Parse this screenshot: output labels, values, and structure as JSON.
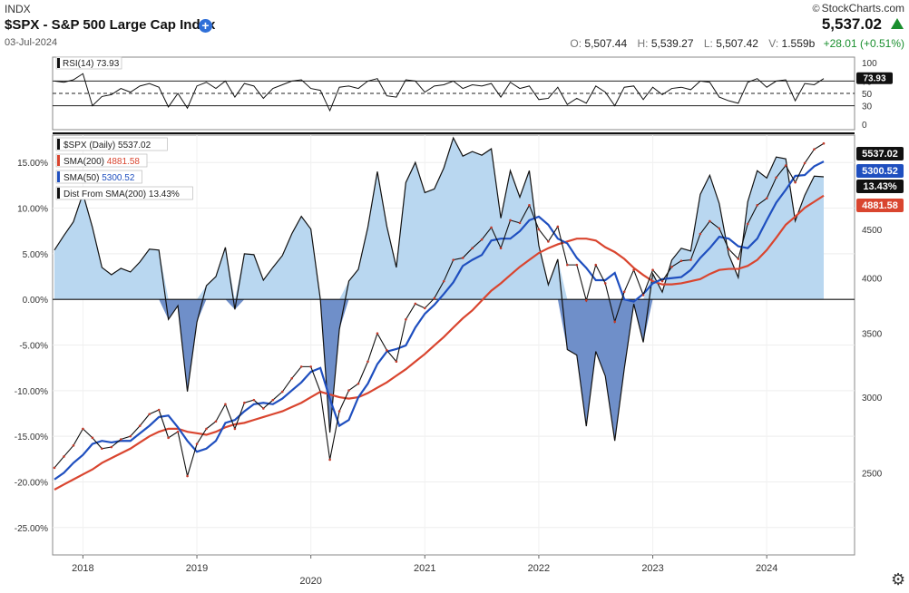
{
  "header": {
    "exchange": "INDX",
    "title": "$SPX - S&P 500 Large Cap Index",
    "date": "03-Jul-2024",
    "brand": "StockCharts.com",
    "price": "5,537.02",
    "open_label": "O:",
    "open": "5,507.44",
    "high_label": "H:",
    "high": "5,539.27",
    "low_label": "L:",
    "low": "5,507.42",
    "volume": "1.559b",
    "change": "+28.01 (+0.51%)"
  },
  "rsi_panel": {
    "legend": "RSI(14)",
    "legend_value": "73.93",
    "badge": "73.93",
    "ticks": [
      "100",
      "70",
      "50",
      "30",
      "0"
    ]
  },
  "main_legend": [
    {
      "label": "$SPX (Daily)",
      "value": "5537.02",
      "color": "#111111"
    },
    {
      "label": "SMA(200)",
      "value": "4881.58",
      "color": "#d9452f"
    },
    {
      "label": "SMA(50)",
      "value": "5300.52",
      "color": "#1f4fbf"
    },
    {
      "label": "Dist From SMA(200)",
      "value": "13.43%",
      "color": "#111111"
    }
  ],
  "badges": [
    {
      "text": "5537.02",
      "bg": "#111111",
      "fg": "#ffffff"
    },
    {
      "text": "5300.52",
      "bg": "#1f4fbf",
      "fg": "#ffffff"
    },
    {
      "text": "13.43%",
      "bg": "#111111",
      "fg": "#ffffff"
    },
    {
      "text": "4881.58",
      "bg": "#d9452f",
      "fg": "#ffffff"
    }
  ],
  "x_ticks": [
    "2018",
    "2019",
    "2020",
    "2021",
    "2022",
    "2023",
    "2024"
  ],
  "chart_data": {
    "type": "line",
    "x": [
      "2017-10",
      "2017-11",
      "2017-12",
      "2018-01",
      "2018-02",
      "2018-03",
      "2018-04",
      "2018-05",
      "2018-06",
      "2018-07",
      "2018-08",
      "2018-09",
      "2018-10",
      "2018-11",
      "2018-12",
      "2019-01",
      "2019-02",
      "2019-03",
      "2019-04",
      "2019-05",
      "2019-06",
      "2019-07",
      "2019-08",
      "2019-09",
      "2019-10",
      "2019-11",
      "2019-12",
      "2020-01",
      "2020-02",
      "2020-03",
      "2020-04",
      "2020-05",
      "2020-06",
      "2020-07",
      "2020-08",
      "2020-09",
      "2020-10",
      "2020-11",
      "2020-12",
      "2021-01",
      "2021-02",
      "2021-03",
      "2021-04",
      "2021-05",
      "2021-06",
      "2021-07",
      "2021-08",
      "2021-09",
      "2021-10",
      "2021-11",
      "2021-12",
      "2022-01",
      "2022-02",
      "2022-03",
      "2022-04",
      "2022-05",
      "2022-06",
      "2022-07",
      "2022-08",
      "2022-09",
      "2022-10",
      "2022-11",
      "2022-12",
      "2023-01",
      "2023-02",
      "2023-03",
      "2023-04",
      "2023-05",
      "2023-06",
      "2023-07",
      "2023-08",
      "2023-09",
      "2023-10",
      "2023-11",
      "2023-12",
      "2024-01",
      "2024-02",
      "2024-03",
      "2024-04",
      "2024-05",
      "2024-06",
      "2024-07"
    ],
    "series": [
      {
        "name": "$SPX (Daily)",
        "axis": "price",
        "values": [
          2530,
          2600,
          2670,
          2780,
          2720,
          2650,
          2660,
          2710,
          2730,
          2800,
          2880,
          2910,
          2720,
          2760,
          2480,
          2680,
          2780,
          2830,
          2950,
          2780,
          2960,
          2980,
          2920,
          2980,
          3040,
          3140,
          3230,
          3230,
          3040,
          2580,
          2900,
          3050,
          3100,
          3270,
          3500,
          3360,
          3270,
          3620,
          3760,
          3720,
          3810,
          3970,
          4180,
          4200,
          4300,
          4390,
          4520,
          4300,
          4600,
          4570,
          4770,
          4500,
          4370,
          4530,
          4130,
          4130,
          3790,
          4130,
          3950,
          3600,
          3870,
          4080,
          3840,
          4080,
          3970,
          4110,
          4170,
          4180,
          4450,
          4590,
          4510,
          4290,
          4190,
          4560,
          4770,
          4850,
          5100,
          5250,
          5040,
          5280,
          5460,
          5537
        ]
      },
      {
        "name": "SMA(200)",
        "axis": "price",
        "values": [
          2400,
          2430,
          2460,
          2490,
          2520,
          2560,
          2590,
          2620,
          2650,
          2690,
          2730,
          2760,
          2780,
          2780,
          2760,
          2750,
          2740,
          2760,
          2790,
          2810,
          2820,
          2840,
          2860,
          2880,
          2900,
          2930,
          2960,
          3000,
          3040,
          3020,
          3000,
          2990,
          3000,
          3030,
          3070,
          3110,
          3160,
          3210,
          3270,
          3330,
          3400,
          3470,
          3550,
          3630,
          3700,
          3790,
          3880,
          3950,
          4030,
          4110,
          4180,
          4250,
          4300,
          4340,
          4370,
          4400,
          4400,
          4380,
          4310,
          4260,
          4190,
          4100,
          4030,
          3970,
          3940,
          3940,
          3950,
          3970,
          3990,
          4040,
          4080,
          4090,
          4090,
          4120,
          4180,
          4280,
          4410,
          4550,
          4640,
          4740,
          4810,
          4881.58
        ]
      },
      {
        "name": "SMA(50)",
        "axis": "price",
        "values": [
          2460,
          2500,
          2560,
          2610,
          2680,
          2700,
          2690,
          2700,
          2700,
          2750,
          2800,
          2860,
          2870,
          2790,
          2700,
          2630,
          2650,
          2700,
          2820,
          2840,
          2900,
          2950,
          2960,
          2950,
          2990,
          3050,
          3110,
          3190,
          3220,
          2990,
          2800,
          2840,
          3000,
          3100,
          3250,
          3350,
          3370,
          3400,
          3550,
          3670,
          3750,
          3850,
          3960,
          4120,
          4180,
          4230,
          4380,
          4400,
          4400,
          4480,
          4600,
          4640,
          4550,
          4400,
          4350,
          4200,
          4100,
          3980,
          3980,
          4050,
          3800,
          3780,
          3850,
          3950,
          3990,
          4000,
          4010,
          4080,
          4200,
          4300,
          4420,
          4400,
          4320,
          4300,
          4400,
          4600,
          4800,
          4950,
          5120,
          5130,
          5240,
          5300.52
        ]
      },
      {
        "name": "Dist From SMA(200)",
        "axis": "percent",
        "values": [
          5.4,
          7.0,
          8.5,
          11.6,
          7.9,
          3.5,
          2.7,
          3.4,
          3.0,
          4.1,
          5.5,
          5.4,
          -2.2,
          -0.7,
          -10.1,
          -2.5,
          1.5,
          2.5,
          5.7,
          -1.1,
          5.0,
          4.9,
          2.1,
          3.5,
          4.8,
          7.2,
          9.1,
          7.7,
          0.0,
          -14.6,
          -3.3,
          2.0,
          3.3,
          7.9,
          14.0,
          8.0,
          3.5,
          12.8,
          15.0,
          11.7,
          12.1,
          14.4,
          17.7,
          15.7,
          16.2,
          15.8,
          16.5,
          8.9,
          14.1,
          11.2,
          14.1,
          5.9,
          1.6,
          4.4,
          -5.5,
          -6.1,
          -13.9,
          -5.7,
          -8.4,
          -15.5,
          -7.6,
          -0.5,
          -4.7,
          2.8,
          0.8,
          4.3,
          5.6,
          5.3,
          11.5,
          13.6,
          10.5,
          4.9,
          2.4,
          10.7,
          14.1,
          13.3,
          15.6,
          15.4,
          8.6,
          11.4,
          13.5,
          13.43
        ]
      },
      {
        "name": "RSI(14)",
        "axis": "rsi",
        "values": [
          70,
          68,
          72,
          82,
          30,
          45,
          48,
          58,
          52,
          62,
          66,
          60,
          28,
          50,
          26,
          62,
          68,
          58,
          70,
          44,
          66,
          62,
          42,
          58,
          64,
          70,
          72,
          58,
          55,
          22,
          60,
          62,
          58,
          70,
          74,
          46,
          44,
          72,
          70,
          52,
          62,
          64,
          70,
          58,
          64,
          62,
          66,
          44,
          68,
          58,
          62,
          40,
          42,
          60,
          32,
          42,
          34,
          62,
          52,
          30,
          60,
          62,
          40,
          60,
          48,
          58,
          60,
          56,
          70,
          68,
          44,
          38,
          34,
          68,
          74,
          60,
          70,
          72,
          38,
          66,
          64,
          73.93
        ]
      }
    ],
    "price_axis": {
      "ticks": [
        2500,
        3000,
        3500,
        4000,
        4500,
        5000
      ],
      "scale": "log",
      "range": [
        2050,
        5650
      ]
    },
    "percent_axis": {
      "ticks": [
        "15.00%",
        "10.00%",
        "5.00%",
        "0.00%",
        "-5.00%",
        "-10.00%",
        "-15.00%",
        "-20.00%",
        "-25.00%"
      ],
      "range": [
        -28,
        18
      ]
    },
    "rsi_axis": {
      "ticks": [
        100,
        70,
        50,
        30,
        0
      ],
      "range": [
        0,
        100
      ]
    },
    "x_ticks": [
      "2018",
      "2019",
      "2020",
      "2021",
      "2022",
      "2023",
      "2024"
    ],
    "colors": {
      "price": "#111111",
      "sma200": "#d9452f",
      "sma50": "#1f4fbf",
      "dist_fill_pos": "#b9d7f0",
      "dist_fill_neg": "#6f8fc9",
      "dist_line": "#111111"
    }
  }
}
